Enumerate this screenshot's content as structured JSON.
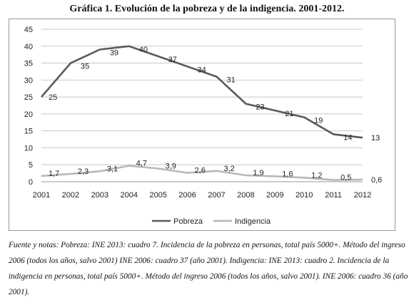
{
  "title": "Gráfica 1. Evolución de la pobreza y de la indigencia. 2001-2012.",
  "note": "Fuente y notas: Pobreza: INE 2013: cuadro 7. Incidencia de la pobreza en personas, total país 5000+. Método del ingreso 2006 (todos los años, salvo 2001) INE 2006: cuadro 37 (año 2001). Indigencia: INE 2013: cuadro 2. Incidencia de la indigencia en personas, total país 5000+. Método del ingreso 2006 (todos los años, salvo 2001). INE 2006: cuadro 36 (año 2001).",
  "chart_data": {
    "type": "line",
    "title": "Gráfica 1. Evolución de la pobreza y de la indigencia. 2001-2012.",
    "xlabel": "",
    "ylabel": "",
    "categories": [
      "2001",
      "2002",
      "2003",
      "2004",
      "2005",
      "2006",
      "2007",
      "2008",
      "2009",
      "2010",
      "2011",
      "2012"
    ],
    "ylim": [
      0,
      45
    ],
    "yticks": [
      "0",
      "5",
      "10",
      "15",
      "20",
      "25",
      "30",
      "35",
      "40",
      "45"
    ],
    "grid": "horizontal",
    "legend": "bottom",
    "series": [
      {
        "name": "Pobreza",
        "color": "#5a5a5a",
        "values": [
          25,
          35,
          39,
          40,
          37,
          34,
          31,
          23,
          21,
          19,
          14,
          13
        ],
        "labels": [
          "25",
          "35",
          "39",
          "40",
          "37",
          "34",
          "31",
          "23",
          "21",
          "19",
          "14",
          "13"
        ]
      },
      {
        "name": "Indigencia",
        "color": "#b8b8b8",
        "values": [
          1.7,
          2.3,
          3.1,
          4.7,
          3.9,
          2.6,
          3.2,
          1.9,
          1.6,
          1.2,
          0.5,
          0.6
        ],
        "labels": [
          "1,7",
          "2,3",
          "3,1",
          "4,7",
          "3,9",
          "2,6",
          "3,2",
          "1,9",
          "1,6",
          "1,2",
          "0,5",
          "0,6"
        ]
      }
    ]
  }
}
